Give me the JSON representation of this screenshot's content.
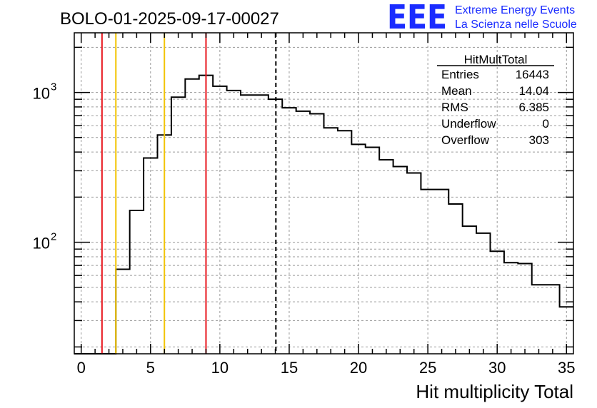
{
  "run_title": "BOLO-01-2025-09-17-00027",
  "logo": {
    "text": "EEE",
    "line1": "Extreme Energy Events",
    "line2": "La Scienza nelle Scuole"
  },
  "stats": {
    "title": "HitMultTotal",
    "rows": [
      {
        "label": "Entries",
        "value": "16443"
      },
      {
        "label": "Mean",
        "value": "14.04"
      },
      {
        "label": "RMS",
        "value": "6.385"
      },
      {
        "label": "Underflow",
        "value": "0"
      },
      {
        "label": "Overflow",
        "value": "303"
      }
    ]
  },
  "colors": {
    "histogram": "#000000",
    "grid": "#9a9a9a",
    "red_line": "#e8141c",
    "yellow_line": "#f2c400",
    "mean_line": "#000000",
    "logo": "#1a2cff"
  },
  "chart_data": {
    "type": "bar",
    "style": "step-histogram",
    "title": "BOLO-01-2025-09-17-00027",
    "xlabel": "Hit multiplicity Total",
    "ylabel": "",
    "yscale": "log",
    "grid": true,
    "xlim": [
      -0.5,
      35.5
    ],
    "ylim": [
      18,
      2500
    ],
    "x_ticks": [
      "0",
      "5",
      "10",
      "15",
      "20",
      "25",
      "30",
      "35"
    ],
    "x_tick_values": [
      0,
      5,
      10,
      15,
      20,
      25,
      30,
      35
    ],
    "y_ticks": [
      {
        "value": 100,
        "base": "10",
        "exp": "2"
      },
      {
        "value": 1000,
        "base": "10",
        "exp": "3"
      }
    ],
    "bin_width": 1,
    "bin_start": -0.5,
    "values": [
      0,
      0,
      0,
      66,
      163,
      365,
      520,
      930,
      1230,
      1300,
      1100,
      1030,
      960,
      960,
      900,
      790,
      750,
      720,
      580,
      555,
      450,
      430,
      355,
      320,
      290,
      225,
      225,
      180,
      128,
      115,
      87,
      73,
      72,
      52,
      52,
      37
    ],
    "vertical_lines": [
      {
        "name": "red-line-left",
        "x": 1.5,
        "color": "red"
      },
      {
        "name": "yellow-line-left",
        "x": 2.5,
        "color": "yellow"
      },
      {
        "name": "yellow-line-right",
        "x": 6.0,
        "color": "yellow"
      },
      {
        "name": "red-line-right",
        "x": 9.0,
        "color": "red"
      },
      {
        "name": "mean-line",
        "x": 14.04,
        "color": "black-dashed"
      }
    ],
    "legend": "top-right"
  }
}
